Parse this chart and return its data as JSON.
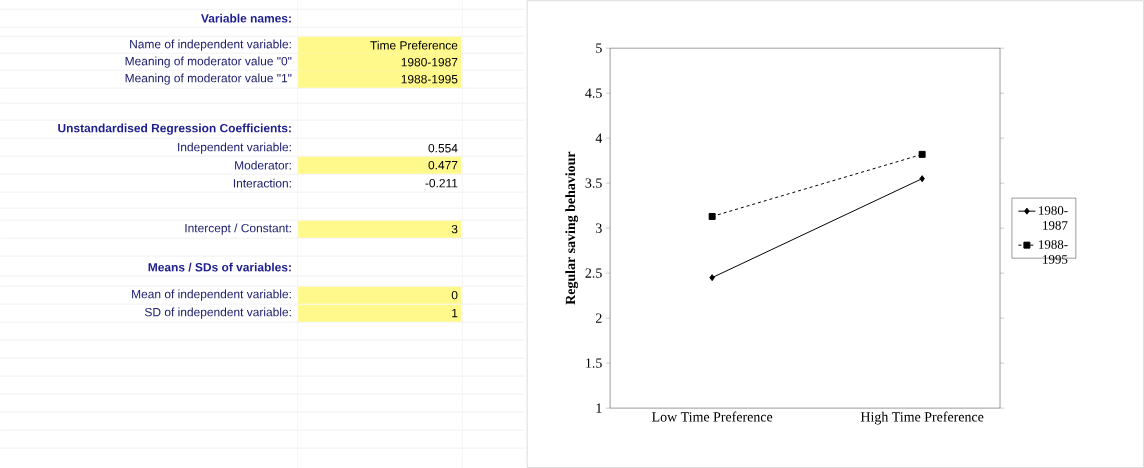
{
  "chart_data": [
    {
      "type": "other",
      "annotations": [
        "Variable names:",
        "Name of independent variable:",
        "Time Preference",
        "Meaning of moderator value \"0\"",
        "1980-1987",
        "Meaning of moderator value \"1\"",
        "1988-1995",
        "Unstandardised Regression Coefficients:",
        "Independent variable:",
        "0.554",
        "Moderator:",
        "0.477",
        "Interaction:",
        "-0.211",
        "Intercept / Constant:",
        "3",
        "Means / SDs of variables:",
        "Mean of independent variable:",
        "0",
        "SD of independent variable:",
        "1"
      ]
    },
    {
      "type": "line",
      "categories": [
        "Low Time Preference",
        "High Time Preference"
      ],
      "ylabel": "Regular saving behaviour",
      "ylim": [
        1,
        5
      ],
      "yticks": [
        1,
        1.5,
        2,
        2.5,
        3,
        3.5,
        4,
        4.5,
        5
      ],
      "legend": "right",
      "grid": false,
      "series": [
        {
          "name": "1980-1987",
          "color": "#000000",
          "values": [
            2.45,
            3.55
          ],
          "marker": "diamond",
          "line_style": "solid"
        },
        {
          "name": "1988-1995",
          "color": "#000000",
          "values": [
            3.13,
            3.82
          ],
          "marker": "square",
          "line_style": "dashed"
        }
      ]
    }
  ]
}
